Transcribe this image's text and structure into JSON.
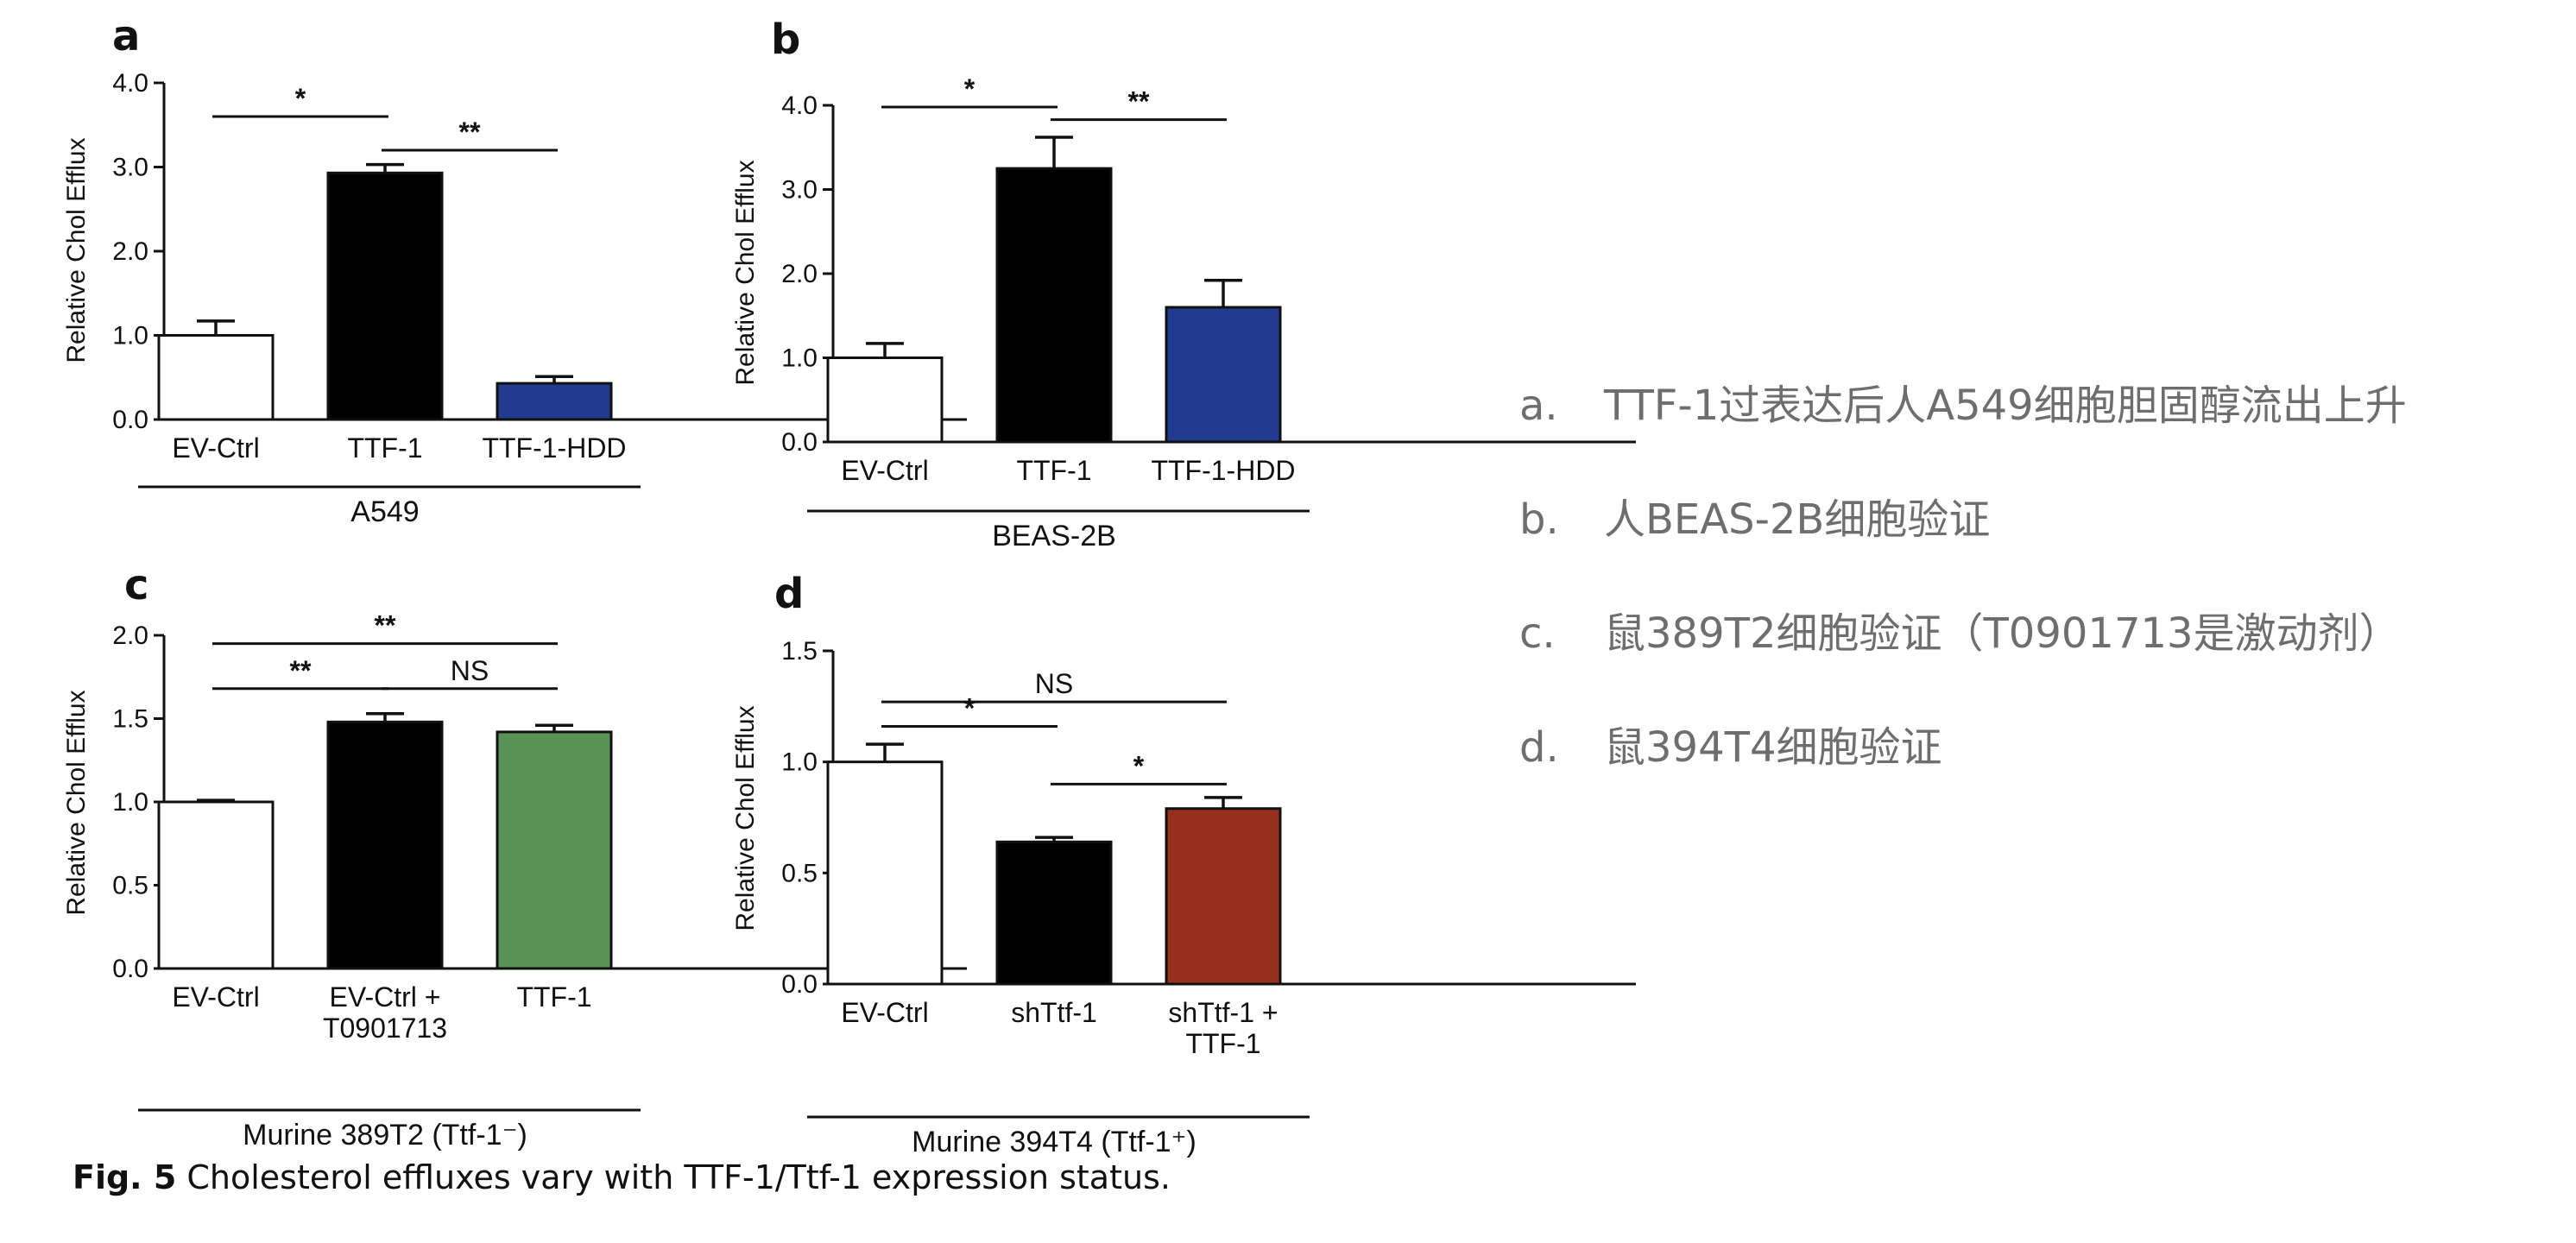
{
  "chart_data": [
    {
      "panel": "a",
      "type": "bar",
      "ylabel": "Relative Chol Efflux",
      "ylim": [
        0,
        4.0
      ],
      "yticks": [
        "0.0",
        "1.0",
        "2.0",
        "3.0",
        "4.0"
      ],
      "ytick_values": [
        0,
        1,
        2,
        3,
        4
      ],
      "categories": [
        "EV-Ctrl",
        "TTF-1",
        "TTF-1-HDD"
      ],
      "values": [
        1.0,
        2.93,
        0.43
      ],
      "errors": [
        0.17,
        0.1,
        0.08
      ],
      "colors": [
        "#ffffff",
        "#000000",
        "#233a91"
      ],
      "group_label": "A549",
      "significance": [
        {
          "from": 0,
          "to": 1,
          "label": "*",
          "y": 3.6
        },
        {
          "from": 1,
          "to": 2,
          "label": "**",
          "y": 3.2
        }
      ]
    },
    {
      "panel": "b",
      "type": "bar",
      "ylabel": "Relative Chol Efflux",
      "ylim": [
        0,
        4.0
      ],
      "yticks": [
        "0.0",
        "1.0",
        "2.0",
        "3.0",
        "4.0"
      ],
      "ytick_values": [
        0,
        1,
        2,
        3,
        4
      ],
      "categories": [
        "EV-Ctrl",
        "TTF-1",
        "TTF-1-HDD"
      ],
      "values": [
        1.0,
        3.25,
        1.6
      ],
      "errors": [
        0.17,
        0.37,
        0.32
      ],
      "colors": [
        "#ffffff",
        "#000000",
        "#233a91"
      ],
      "group_label": "BEAS-2B",
      "significance": [
        {
          "from": 0,
          "to": 1,
          "label": "*",
          "y": 3.98
        },
        {
          "from": 1,
          "to": 2,
          "label": "**",
          "y": 3.83
        }
      ]
    },
    {
      "panel": "c",
      "type": "bar",
      "ylabel": "Relative Chol Efflux",
      "ylim": [
        0,
        2.0
      ],
      "yticks": [
        "0.0",
        "0.5",
        "1.0",
        "1.5",
        "2.0"
      ],
      "ytick_values": [
        0,
        0.5,
        1.0,
        1.5,
        2.0
      ],
      "categories": [
        [
          "EV-Ctrl"
        ],
        [
          "EV-Ctrl +",
          "T0901713"
        ],
        [
          "TTF-1"
        ]
      ],
      "values": [
        1.0,
        1.48,
        1.42
      ],
      "errors": [
        0.01,
        0.05,
        0.04
      ],
      "colors": [
        "#ffffff",
        "#000000",
        "#5a9155"
      ],
      "group_label": "Murine 389T2 (Ttf-1⁻)",
      "significance": [
        {
          "from": 0,
          "to": 2,
          "label": "**",
          "y": 1.95
        },
        {
          "from": 0,
          "to": 1,
          "label": "**",
          "y": 1.68
        },
        {
          "from": 1,
          "to": 2,
          "label": "NS",
          "y": 1.68
        }
      ]
    },
    {
      "panel": "d",
      "type": "bar",
      "ylabel": "Relative Chol Efflux",
      "ylim": [
        0,
        1.5
      ],
      "yticks": [
        "0.0",
        "0.5",
        "1.0",
        "1.5"
      ],
      "ytick_values": [
        0,
        0.5,
        1.0,
        1.5
      ],
      "categories": [
        [
          "EV-Ctrl"
        ],
        [
          "shTtf-1"
        ],
        [
          "shTtf-1 +",
          "TTF-1"
        ]
      ],
      "values": [
        1.0,
        0.64,
        0.79
      ],
      "errors": [
        0.08,
        0.02,
        0.05
      ],
      "colors": [
        "#ffffff",
        "#000000",
        "#95301f"
      ],
      "group_label": "Murine 394T4 (Ttf-1⁺)",
      "significance": [
        {
          "from": 0,
          "to": 2,
          "label": "NS",
          "y": 1.27
        },
        {
          "from": 0,
          "to": 1,
          "label": "*",
          "y": 1.16
        },
        {
          "from": 1,
          "to": 2,
          "label": "*",
          "y": 0.9
        }
      ]
    }
  ],
  "notes": [
    {
      "letter": "a.",
      "text": "TTF-1过表达后人A549细胞胆固醇流出上升"
    },
    {
      "letter": "b.",
      "text": "人BEAS-2B细胞验证"
    },
    {
      "letter": "c.",
      "text": "鼠389T2细胞验证（T0901713是激动剂）"
    },
    {
      "letter": "d.",
      "text": "鼠394T4细胞验证"
    }
  ],
  "caption": {
    "fig_num": "Fig. 5",
    "text": " Cholesterol effluxes vary with TTF-1/Ttf-1 expression status."
  }
}
